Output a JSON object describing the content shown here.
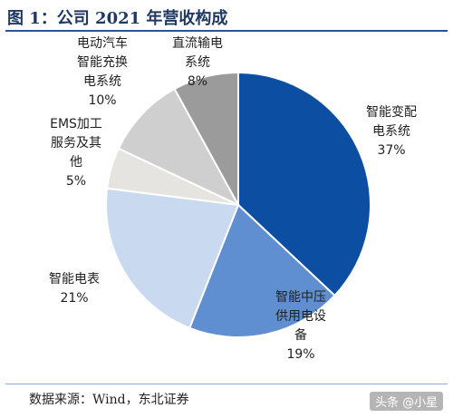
{
  "header": {
    "title": "图 1：公司 2021 年营收构成"
  },
  "footer": {
    "source": "数据来源：Wind，东北证券",
    "watermark": "头条 @小星"
  },
  "chart_data": {
    "type": "pie",
    "title": "图 1：公司 2021 年营收构成",
    "slices": [
      {
        "name": "智能变配电系统",
        "label_lines": [
          "智能变配",
          "电系统"
        ],
        "value": 37,
        "value_label": "37%",
        "color": "#0b4ea2"
      },
      {
        "name": "智能中压供用电设备",
        "label_lines": [
          "智能中压",
          "供用电设",
          "备"
        ],
        "value": 19,
        "value_label": "19%",
        "color": "#5f8fd0"
      },
      {
        "name": "智能电表",
        "label_lines": [
          "智能电表"
        ],
        "value": 21,
        "value_label": "21%",
        "color": "#c9d9f0"
      },
      {
        "name": "EMS加工服务及其他",
        "label_lines": [
          "EMS加工",
          "服务及其",
          "他"
        ],
        "value": 5,
        "value_label": "5%",
        "color": "#e6e4e0"
      },
      {
        "name": "电动汽车智能充换电系统",
        "label_lines": [
          "电动汽车",
          "智能充换",
          "电系统"
        ],
        "value": 10,
        "value_label": "10%",
        "color": "#cfcfcf"
      },
      {
        "name": "直流输电系统",
        "label_lines": [
          "直流输电",
          "系统"
        ],
        "value": 8,
        "value_label": "8%",
        "color": "#9b9b9b"
      }
    ]
  }
}
